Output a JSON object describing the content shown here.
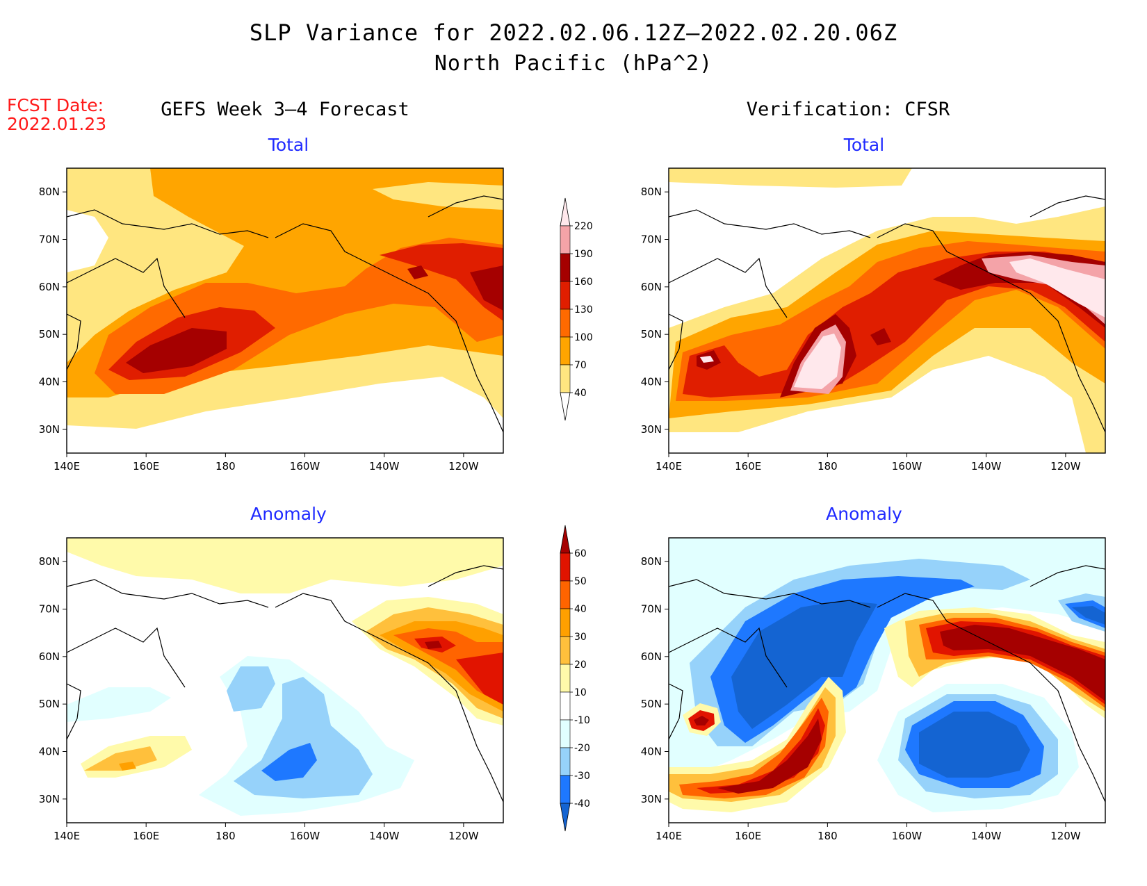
{
  "title": {
    "line1": "SLP Variance for 2022.02.06.12Z–2022.02.20.06Z",
    "line2": "North Pacific (hPa^2)"
  },
  "fcst_date": {
    "label": "FCST Date:",
    "value": "2022.01.23"
  },
  "columns": {
    "left": "GEFS Week 3–4 Forecast",
    "right": "Verification: CFSR"
  },
  "panels": {
    "total_forecast": "Total",
    "total_verification": "Total",
    "anomaly_forecast": "Anomaly",
    "anomaly_verification": "Anomaly"
  },
  "axes": {
    "lon_labels": [
      "140E",
      "160E",
      "180",
      "160W",
      "140W",
      "120W"
    ],
    "lon_values": [
      140,
      160,
      180,
      200,
      220,
      240
    ],
    "lat_labels": [
      "80N",
      "70N",
      "60N",
      "50N",
      "40N",
      "30N"
    ],
    "lat_values": [
      80,
      70,
      60,
      50,
      40,
      30
    ],
    "lon_range": [
      140,
      250
    ],
    "lat_range": [
      25,
      85
    ]
  },
  "total_colorbar": {
    "labels": [
      "40",
      "70",
      "100",
      "130",
      "160",
      "190",
      "220"
    ],
    "colors": [
      "#ffffff",
      "#ffe680",
      "#ffa500",
      "#ff6a00",
      "#e01e00",
      "#a50000",
      "#f4a3a8",
      "#ffe8ec"
    ]
  },
  "anomaly_colorbar": {
    "labels": [
      "-40",
      "-30",
      "-20",
      "-10",
      "10",
      "20",
      "30",
      "40",
      "50",
      "60"
    ],
    "colors": [
      "#1464d2",
      "#1e78ff",
      "#96d2fa",
      "#e1ffff",
      "#ffffff",
      "#fffaaa",
      "#ffc03c",
      "#ffa000",
      "#ff6400",
      "#e11400",
      "#a50000"
    ]
  }
}
